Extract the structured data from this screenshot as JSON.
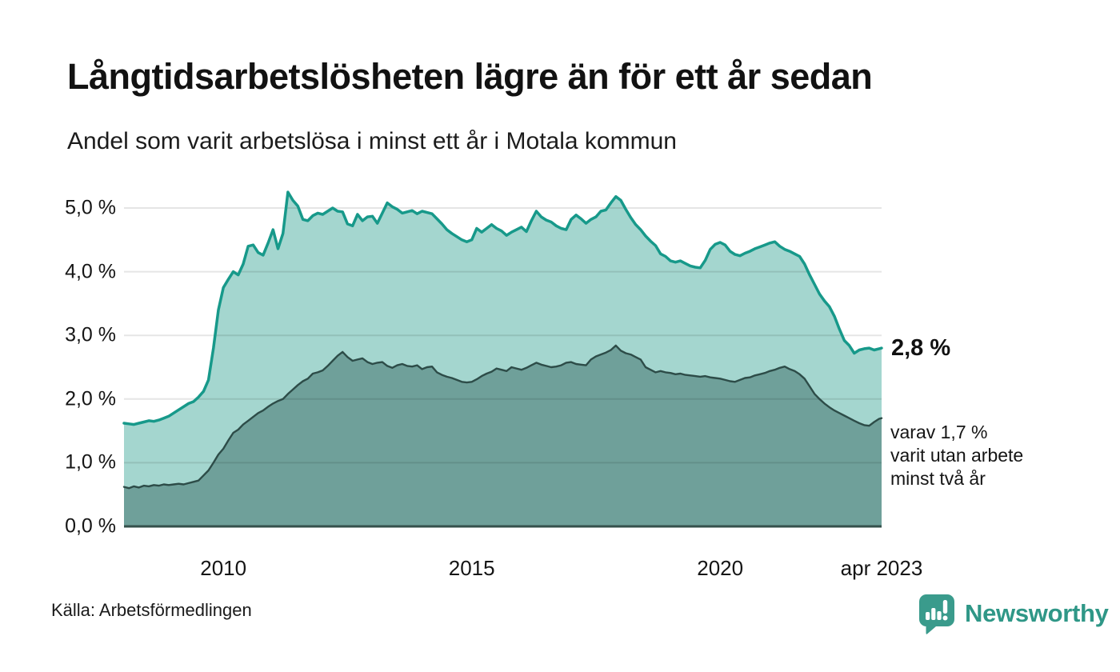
{
  "header": {
    "title": "Långtidsarbetslösheten lägre än för ett år sedan",
    "subtitle": "Andel som varit arbetslösa i minst ett år i Motala kommun"
  },
  "chart_data": {
    "type": "area",
    "title": "Långtidsarbetslösheten lägre än för ett år sedan",
    "subtitle": "Andel som varit arbetslösa i minst ett år i Motala kommun",
    "x_unit": "year",
    "x_start": 2008.0,
    "x_step": 0.1,
    "x_end": 2023.25,
    "ylim": [
      0,
      5.5
    ],
    "grid": true,
    "yticks": [
      {
        "v": 0,
        "label": "0,0 %"
      },
      {
        "v": 1,
        "label": "1,0 %"
      },
      {
        "v": 2,
        "label": "2,0 %"
      },
      {
        "v": 3,
        "label": "3,0 %"
      },
      {
        "v": 4,
        "label": "4,0 %"
      },
      {
        "v": 5,
        "label": "5,0 %"
      }
    ],
    "xticks": [
      {
        "t": 2010,
        "label": "2010"
      },
      {
        "t": 2015,
        "label": "2015"
      },
      {
        "t": 2020,
        "label": "2020"
      },
      {
        "t": 2023.25,
        "label": "apr 2023"
      }
    ],
    "series": [
      {
        "name": "Andel arbetslösa minst ett år",
        "line_color": "#17998a",
        "fill_color": "#a4d6cf",
        "line_width": 3.5,
        "end_value_label": "2,8 %",
        "values": [
          1.62,
          1.61,
          1.6,
          1.62,
          1.64,
          1.66,
          1.65,
          1.67,
          1.7,
          1.73,
          1.78,
          1.83,
          1.88,
          1.93,
          1.96,
          2.03,
          2.12,
          2.3,
          2.8,
          3.4,
          3.75,
          3.88,
          4.0,
          3.95,
          4.12,
          4.4,
          4.42,
          4.3,
          4.26,
          4.45,
          4.66,
          4.36,
          4.6,
          5.25,
          5.12,
          5.03,
          4.82,
          4.8,
          4.88,
          4.92,
          4.9,
          4.95,
          5.0,
          4.95,
          4.94,
          4.75,
          4.72,
          4.9,
          4.8,
          4.86,
          4.87,
          4.76,
          4.92,
          5.08,
          5.02,
          4.98,
          4.92,
          4.94,
          4.96,
          4.91,
          4.95,
          4.93,
          4.91,
          4.83,
          4.75,
          4.66,
          4.6,
          4.55,
          4.5,
          4.47,
          4.5,
          4.68,
          4.62,
          4.68,
          4.74,
          4.68,
          4.64,
          4.57,
          4.62,
          4.66,
          4.7,
          4.63,
          4.8,
          4.95,
          4.86,
          4.81,
          4.78,
          4.72,
          4.68,
          4.66,
          4.82,
          4.89,
          4.83,
          4.76,
          4.82,
          4.86,
          4.95,
          4.97,
          5.08,
          5.18,
          5.12,
          4.98,
          4.85,
          4.74,
          4.66,
          4.56,
          4.48,
          4.41,
          4.28,
          4.24,
          4.17,
          4.15,
          4.17,
          4.13,
          4.09,
          4.07,
          4.06,
          4.18,
          4.35,
          4.43,
          4.46,
          4.42,
          4.32,
          4.27,
          4.25,
          4.29,
          4.32,
          4.36,
          4.39,
          4.42,
          4.45,
          4.47,
          4.4,
          4.35,
          4.32,
          4.28,
          4.24,
          4.12,
          3.95,
          3.8,
          3.65,
          3.54,
          3.45,
          3.3,
          3.1,
          2.92,
          2.84,
          2.72,
          2.77,
          2.79,
          2.8,
          2.77,
          2.79,
          2.8
        ]
      },
      {
        "name": "Andel arbetslösa minst två år",
        "line_color": "#2d4c48",
        "fill_color": "#6fa09a",
        "line_width": 2.4,
        "end_value_label": "1,7 %",
        "values": [
          0.62,
          0.6,
          0.63,
          0.61,
          0.64,
          0.63,
          0.65,
          0.64,
          0.66,
          0.65,
          0.66,
          0.67,
          0.66,
          0.68,
          0.7,
          0.72,
          0.8,
          0.88,
          1.0,
          1.13,
          1.22,
          1.35,
          1.47,
          1.52,
          1.6,
          1.66,
          1.72,
          1.78,
          1.82,
          1.88,
          1.93,
          1.97,
          2.0,
          2.08,
          2.15,
          2.22,
          2.28,
          2.32,
          2.4,
          2.42,
          2.45,
          2.52,
          2.6,
          2.68,
          2.74,
          2.66,
          2.6,
          2.62,
          2.64,
          2.58,
          2.55,
          2.57,
          2.58,
          2.52,
          2.49,
          2.53,
          2.55,
          2.52,
          2.51,
          2.53,
          2.47,
          2.5,
          2.51,
          2.42,
          2.38,
          2.35,
          2.33,
          2.3,
          2.27,
          2.26,
          2.27,
          2.31,
          2.36,
          2.4,
          2.43,
          2.48,
          2.46,
          2.44,
          2.5,
          2.48,
          2.46,
          2.49,
          2.53,
          2.57,
          2.54,
          2.52,
          2.5,
          2.51,
          2.53,
          2.57,
          2.58,
          2.55,
          2.54,
          2.53,
          2.62,
          2.67,
          2.7,
          2.73,
          2.77,
          2.84,
          2.76,
          2.72,
          2.7,
          2.66,
          2.62,
          2.5,
          2.46,
          2.42,
          2.44,
          2.42,
          2.41,
          2.39,
          2.4,
          2.38,
          2.37,
          2.36,
          2.35,
          2.36,
          2.34,
          2.33,
          2.32,
          2.3,
          2.28,
          2.27,
          2.3,
          2.33,
          2.34,
          2.37,
          2.39,
          2.41,
          2.44,
          2.46,
          2.49,
          2.51,
          2.47,
          2.44,
          2.39,
          2.32,
          2.2,
          2.08,
          2.0,
          1.93,
          1.87,
          1.82,
          1.78,
          1.74,
          1.7,
          1.66,
          1.62,
          1.59,
          1.58,
          1.64,
          1.69,
          1.7
        ]
      }
    ],
    "annotations": {
      "primary": "2,8 %",
      "secondary_lines": [
        "varav 1,7 %",
        "varit utan arbete",
        "minst två år"
      ]
    },
    "colors": {
      "gridline": "rgba(0,0,0,0.10)",
      "baseline": "#35514c",
      "background": "#ffffff"
    }
  },
  "footer": {
    "source": "Källa: Arbetsförmedlingen",
    "brand_name": "Newsworthy",
    "brand_color": "#2f9787"
  }
}
